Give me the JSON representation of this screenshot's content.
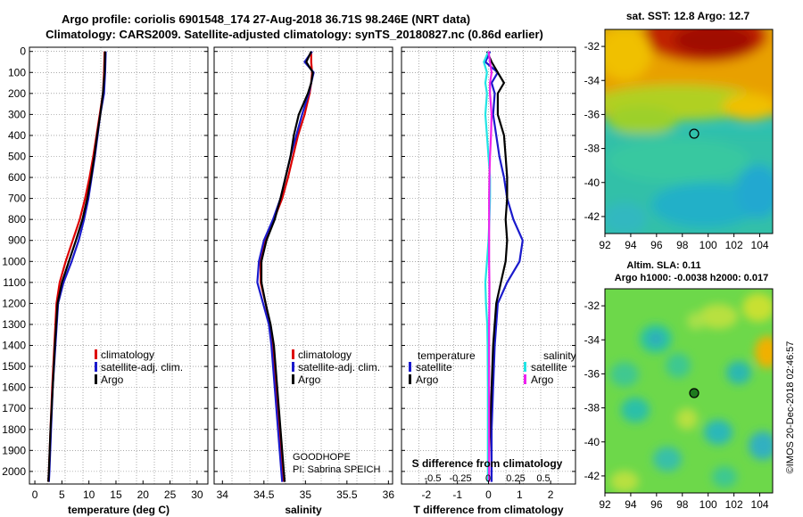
{
  "header": {
    "title_line1": "Argo profile: coriolis 6901548_174 27-Aug-2018 36.71S 98.246E (NRT data)",
    "title_line2": "Climatology: CARS2009. Satellite-adjusted climatology: synTS_20180827.nc (0.86d earlier)"
  },
  "colors": {
    "climatology": "#dd0000",
    "satellite_adj": "#1a1acc",
    "argo": "#000000",
    "satellite_salinity": "#22e5e5",
    "argo_salinity": "#ee22ee",
    "grid": "#777777"
  },
  "depth_ticks": [
    0,
    100,
    200,
    300,
    400,
    500,
    600,
    700,
    800,
    900,
    1000,
    1100,
    1200,
    1300,
    1400,
    1500,
    1600,
    1700,
    1800,
    1900,
    2000
  ],
  "legend": {
    "climatology": "climatology",
    "satellite": "satellite-adj. clim.",
    "argo": "Argo",
    "temperature_header": "temperature",
    "salinity_header": "salinity",
    "satellite_short": "satellite",
    "argo_short": "Argo"
  },
  "chart_data": [
    {
      "type": "line",
      "title": "",
      "xlabel": "temperature (deg C)",
      "ylabel": "depth",
      "xlim": [
        -1,
        32
      ],
      "ylim": [
        2060,
        -20
      ],
      "xticks": [
        0,
        5,
        10,
        15,
        20,
        25,
        30
      ],
      "series": [
        {
          "name": "climatology",
          "depth": [
            0,
            100,
            200,
            300,
            400,
            500,
            600,
            700,
            800,
            900,
            1000,
            1100,
            1200,
            1400,
            1600,
            1800,
            2000,
            2050
          ],
          "values": [
            12.9,
            12.8,
            12.6,
            12.0,
            11.4,
            10.8,
            10.1,
            9.3,
            8.3,
            7.0,
            5.7,
            4.6,
            4.0,
            3.6,
            3.2,
            2.9,
            2.6,
            2.5
          ]
        },
        {
          "name": "satellite-adj. clim.",
          "depth": [
            0,
            100,
            200,
            300,
            400,
            500,
            600,
            700,
            800,
            900,
            1000,
            1100,
            1200,
            1400,
            1600,
            1800,
            2000,
            2050
          ],
          "values": [
            13.1,
            13.0,
            12.8,
            12.1,
            11.6,
            11.1,
            10.5,
            9.9,
            9.1,
            8.1,
            6.8,
            5.3,
            4.3,
            3.8,
            3.3,
            3.0,
            2.7,
            2.6
          ]
        },
        {
          "name": "Argo",
          "depth": [
            0,
            100,
            200,
            300,
            400,
            500,
            600,
            700,
            800,
            900,
            1000,
            1100,
            1200,
            1400,
            1600,
            1800,
            2000,
            2050
          ],
          "values": [
            13.0,
            12.9,
            12.6,
            12.1,
            11.5,
            11.0,
            10.4,
            9.7,
            8.8,
            7.6,
            6.3,
            5.0,
            4.2,
            3.7,
            3.3,
            2.9,
            2.6,
            2.5
          ]
        }
      ]
    },
    {
      "type": "line",
      "xlabel": "salinity",
      "ylabel": "depth",
      "xlim": [
        33.9,
        36.05
      ],
      "ylim": [
        2060,
        -20
      ],
      "xticks": [
        34,
        34.5,
        35,
        35.5,
        36
      ],
      "annotation_line1": "GOODHOPE",
      "annotation_line2": "PI: Sabrina SPEICH",
      "series": [
        {
          "name": "climatology",
          "depth": [
            0,
            50,
            100,
            150,
            200,
            300,
            400,
            500,
            600,
            700,
            800,
            900,
            1000,
            1100,
            1200,
            1300,
            1400,
            1600,
            1800,
            2000,
            2050
          ],
          "values": [
            35.07,
            35.07,
            35.08,
            35.07,
            35.05,
            34.99,
            34.91,
            34.85,
            34.79,
            34.72,
            34.62,
            34.52,
            34.46,
            34.46,
            34.52,
            34.57,
            34.6,
            34.64,
            34.68,
            34.72,
            34.73
          ]
        },
        {
          "name": "satellite-adj. clim.",
          "depth": [
            0,
            50,
            100,
            150,
            200,
            300,
            400,
            500,
            600,
            700,
            800,
            900,
            1000,
            1100,
            1200,
            1300,
            1400,
            1600,
            1800,
            2000,
            2050
          ],
          "values": [
            35.08,
            34.99,
            35.1,
            35.07,
            35.04,
            34.96,
            34.89,
            34.82,
            34.76,
            34.7,
            34.61,
            34.5,
            34.44,
            34.42,
            34.49,
            34.56,
            34.59,
            34.63,
            34.67,
            34.71,
            34.72
          ]
        },
        {
          "name": "Argo",
          "depth": [
            0,
            50,
            100,
            150,
            200,
            300,
            400,
            500,
            600,
            700,
            800,
            900,
            1000,
            1100,
            1200,
            1300,
            1400,
            1600,
            1800,
            2000,
            2050
          ],
          "values": [
            35.07,
            35.01,
            35.09,
            35.07,
            35.03,
            34.92,
            34.86,
            34.82,
            34.76,
            34.7,
            34.63,
            34.53,
            34.47,
            34.47,
            34.52,
            34.58,
            34.62,
            34.66,
            34.7,
            34.74,
            34.75
          ]
        }
      ]
    },
    {
      "type": "line",
      "xlabel": "T difference from climatology",
      "ylabel": "depth",
      "xlim": [
        -2.8,
        2.8
      ],
      "ylim": [
        2060,
        -20
      ],
      "xticks": [
        -2,
        -1,
        0,
        1,
        2
      ],
      "s_axis_label": "S difference  from climatology",
      "s_ticks": [
        "-0.5",
        "-0.25",
        "0",
        "0.25",
        "0.5"
      ],
      "series": [
        {
          "name": "temperature satellite",
          "depth": [
            0,
            50,
            100,
            150,
            200,
            300,
            400,
            500,
            600,
            700,
            800,
            900,
            1000,
            1100,
            1200,
            1400,
            1600,
            1800,
            2000,
            2050
          ],
          "values": [
            0.05,
            -0.1,
            0.3,
            0.1,
            0.2,
            0.15,
            0.25,
            0.35,
            0.5,
            0.6,
            0.8,
            1.1,
            1.0,
            0.6,
            0.3,
            0.2,
            0.15,
            0.1,
            0.1,
            0.1
          ]
        },
        {
          "name": "temperature Argo",
          "depth": [
            0,
            50,
            100,
            150,
            200,
            300,
            400,
            500,
            600,
            700,
            800,
            900,
            1000,
            1100,
            1200,
            1400,
            1600,
            1800,
            2000,
            2050
          ],
          "values": [
            -0.05,
            0.1,
            0.3,
            0.5,
            0.3,
            0.3,
            0.5,
            0.55,
            0.6,
            0.6,
            0.55,
            0.6,
            0.55,
            0.4,
            0.25,
            0.15,
            0.1,
            0.05,
            0.0,
            0.0
          ]
        },
        {
          "name": "salinity satellite",
          "depth": [
            0,
            50,
            100,
            150,
            200,
            300,
            400,
            500,
            600,
            700,
            800,
            900,
            1000,
            1100,
            1200,
            1300,
            1400,
            1600,
            1800,
            2000,
            2050
          ],
          "values": [
            0.0,
            -0.15,
            -0.05,
            -0.1,
            -0.05,
            -0.1,
            -0.05,
            0.0,
            0.05,
            0.05,
            0.03,
            0.0,
            -0.05,
            -0.1,
            -0.08,
            -0.04,
            -0.03,
            -0.02,
            -0.02,
            -0.02,
            -0.02
          ]
        },
        {
          "name": "salinity Argo",
          "depth": [
            0,
            50,
            100,
            150,
            200,
            300,
            400,
            500,
            600,
            700,
            800,
            900,
            1000,
            1100,
            1200,
            1300,
            1400,
            1600,
            1800,
            2000,
            2050
          ],
          "values": [
            0.0,
            0.05,
            0.1,
            0.05,
            0.05,
            0.1,
            0.08,
            0.05,
            0.03,
            0.02,
            0.02,
            0.02,
            0.02,
            0.03,
            0.03,
            0.02,
            0.02,
            0.02,
            0.02,
            0.02,
            0.02
          ]
        }
      ]
    },
    {
      "type": "heatmap",
      "title": "sat. SST: 12.8 Argo: 12.7",
      "xlim": [
        92,
        105
      ],
      "ylim": [
        -43,
        -31
      ],
      "xticks": [
        92,
        94,
        96,
        98,
        100,
        102,
        104
      ],
      "yticks": [
        -32,
        -34,
        -36,
        -38,
        -40,
        -42
      ],
      "marker": [
        98.25,
        -36.7
      ]
    },
    {
      "type": "heatmap",
      "title_line1": "Altim. SLA: 0.11",
      "title_line2": "Argo h1000: -0.0038 h2000: 0.017",
      "xlim": [
        92,
        105
      ],
      "ylim": [
        -43,
        -31
      ],
      "xticks": [
        92,
        94,
        96,
        98,
        100,
        102,
        104
      ],
      "yticks": [
        -32,
        -34,
        -36,
        -38,
        -40,
        -42
      ],
      "marker": [
        98.25,
        -36.7
      ]
    }
  ],
  "footer": {
    "credit": "©IMOS 20-Dec-2018 02:46:57"
  }
}
